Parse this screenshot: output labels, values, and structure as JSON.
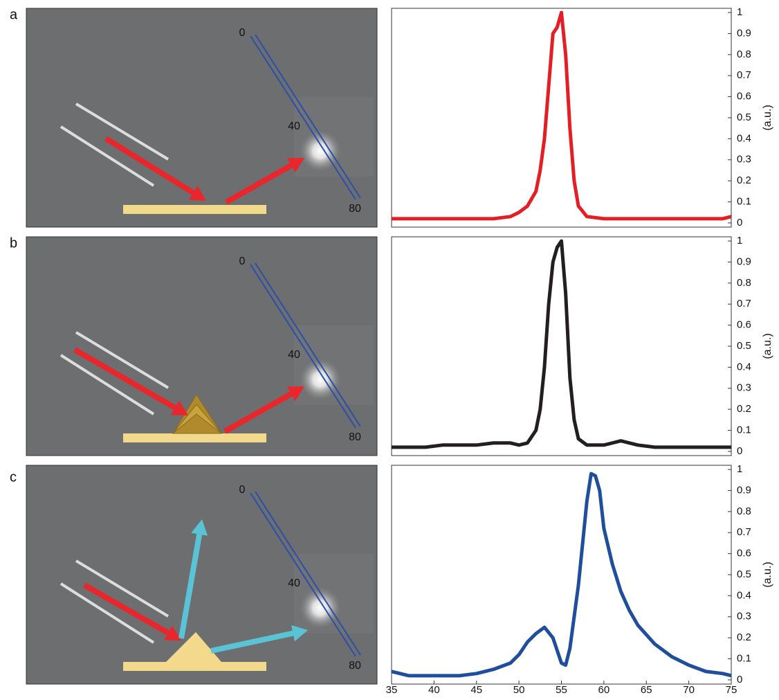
{
  "panels": [
    {
      "label": "a",
      "scale_labels": [
        "0",
        "40",
        "80"
      ]
    },
    {
      "label": "b",
      "scale_labels": [
        "0",
        "40",
        "80"
      ]
    },
    {
      "label": "c",
      "scale_labels": [
        "0",
        "40",
        "80"
      ]
    }
  ],
  "chart_data": [
    {
      "type": "line",
      "y_label": "(a.u.)",
      "color": "#e31e24",
      "x": [
        35,
        37,
        39,
        41,
        43,
        45,
        47,
        49,
        50,
        51,
        52,
        52.5,
        53,
        53.5,
        54,
        54.5,
        55,
        55.5,
        56,
        56.5,
        57,
        58,
        60,
        62,
        64,
        66,
        68,
        70,
        72,
        74,
        75
      ],
      "values": [
        0.02,
        0.02,
        0.02,
        0.02,
        0.02,
        0.02,
        0.02,
        0.03,
        0.05,
        0.08,
        0.15,
        0.25,
        0.4,
        0.65,
        0.9,
        0.93,
        1.0,
        0.8,
        0.45,
        0.2,
        0.08,
        0.03,
        0.02,
        0.02,
        0.02,
        0.02,
        0.02,
        0.02,
        0.02,
        0.02,
        0.03
      ],
      "xlim": [
        35,
        75
      ],
      "ylim": [
        -0.02,
        1.02
      ],
      "yticks": [
        0,
        0.1,
        0.2,
        0.3,
        0.4,
        0.5,
        0.6,
        0.7,
        0.8,
        0.9,
        1
      ]
    },
    {
      "type": "line",
      "y_label": "(a.u.)",
      "color": "#231f20",
      "x": [
        35,
        37,
        39,
        41,
        43,
        45,
        47,
        49,
        50,
        51,
        52,
        52.5,
        53,
        53.5,
        54,
        54.5,
        55,
        55.5,
        56,
        56.5,
        57,
        58,
        60,
        62,
        64,
        66,
        68,
        70,
        72,
        74,
        75
      ],
      "values": [
        0.02,
        0.02,
        0.02,
        0.03,
        0.03,
        0.03,
        0.04,
        0.04,
        0.03,
        0.04,
        0.1,
        0.2,
        0.4,
        0.7,
        0.9,
        0.97,
        1.0,
        0.75,
        0.35,
        0.15,
        0.06,
        0.03,
        0.03,
        0.05,
        0.03,
        0.02,
        0.02,
        0.02,
        0.02,
        0.02,
        0.02
      ],
      "xlim": [
        35,
        75
      ],
      "ylim": [
        -0.02,
        1.02
      ],
      "yticks": [
        0,
        0.1,
        0.2,
        0.3,
        0.4,
        0.5,
        0.6,
        0.7,
        0.8,
        0.9,
        1
      ]
    },
    {
      "type": "line",
      "y_label": "(a.u.)",
      "color": "#1f4e9c",
      "x": [
        35,
        37,
        39,
        41,
        43,
        45,
        47,
        49,
        50,
        51,
        52,
        53,
        54,
        55,
        55.5,
        56,
        57,
        58,
        58.5,
        59,
        59.5,
        60,
        61,
        62,
        63,
        64,
        66,
        68,
        70,
        72,
        74,
        75
      ],
      "values": [
        0.04,
        0.02,
        0.02,
        0.02,
        0.02,
        0.03,
        0.05,
        0.08,
        0.12,
        0.18,
        0.22,
        0.25,
        0.2,
        0.08,
        0.07,
        0.15,
        0.45,
        0.85,
        0.98,
        0.97,
        0.9,
        0.72,
        0.55,
        0.42,
        0.33,
        0.26,
        0.17,
        0.11,
        0.07,
        0.04,
        0.03,
        0.02
      ],
      "xlim": [
        35,
        75
      ],
      "ylim": [
        -0.02,
        1.02
      ],
      "yticks": [
        0,
        0.1,
        0.2,
        0.3,
        0.4,
        0.5,
        0.6,
        0.7,
        0.8,
        0.9,
        1
      ],
      "xticks": [
        35,
        40,
        45,
        50,
        55,
        60,
        65,
        70,
        75
      ]
    }
  ]
}
